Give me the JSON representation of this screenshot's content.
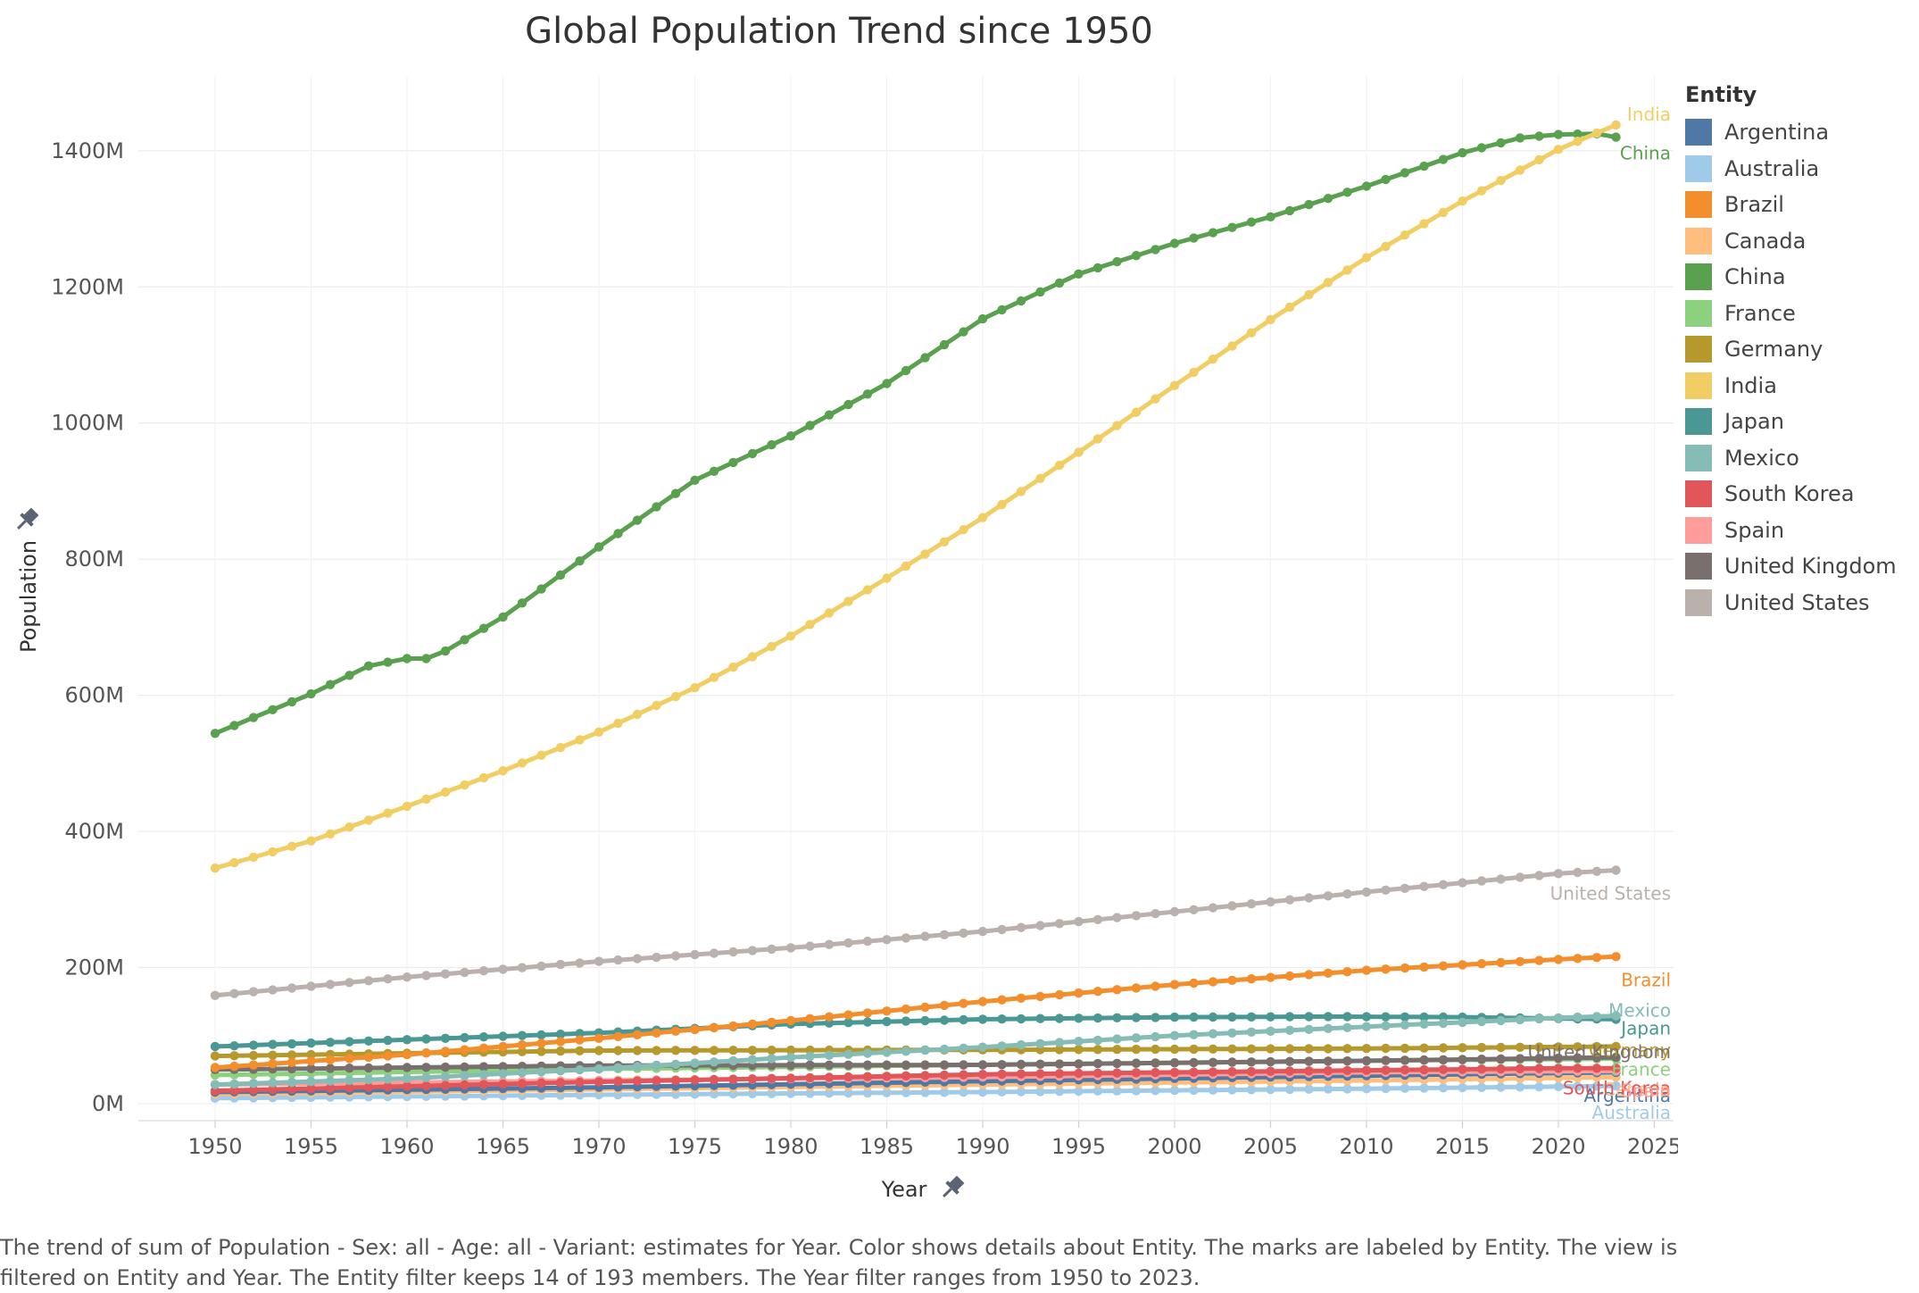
{
  "page_title": "Global Population Trend since 1950",
  "legend_title": "Entity",
  "caption": [
    "The trend of sum of Population - Sex: all - Age: all - Variant: estimates for Year.  Color shows details about Entity.  The marks are labeled by Entity. The view is",
    "filtered on Entity and Year. The Entity filter keeps 14 of 193 members. The Year filter ranges from 1950 to 2023."
  ],
  "chart_data": {
    "type": "line",
    "title": "Global Population Trend since 1950",
    "xlabel": "Year",
    "ylabel": "Population",
    "xlim": [
      1946,
      2026
    ],
    "ylim": [
      -25,
      1510
    ],
    "x_ticks": [
      1950,
      1955,
      1960,
      1965,
      1970,
      1975,
      1980,
      1985,
      1990,
      1995,
      2000,
      2005,
      2010,
      2015,
      2020,
      2025
    ],
    "y_ticks": [
      0,
      200,
      400,
      600,
      800,
      1000,
      1200,
      1400
    ],
    "y_tick_labels": [
      "0M",
      "200M",
      "400M",
      "600M",
      "800M",
      "1000M",
      "1200M",
      "1400M"
    ],
    "units": "millions",
    "legend": "right",
    "grid": true,
    "series": [
      {
        "name": "Argentina",
        "color": "#4e79a7",
        "knots": [
          [
            1950,
            17
          ],
          [
            1970,
            24
          ],
          [
            1990,
            33
          ],
          [
            2010,
            41
          ],
          [
            2023,
            46
          ]
        ]
      },
      {
        "name": "Australia",
        "color": "#a0cbe8",
        "knots": [
          [
            1950,
            8
          ],
          [
            1970,
            13
          ],
          [
            1990,
            17
          ],
          [
            2010,
            22
          ],
          [
            2023,
            26
          ]
        ]
      },
      {
        "name": "Brazil",
        "color": "#f28e2b",
        "knots": [
          [
            1950,
            53
          ],
          [
            1960,
            72
          ],
          [
            1970,
            96
          ],
          [
            1980,
            122
          ],
          [
            1990,
            150
          ],
          [
            2000,
            175
          ],
          [
            2010,
            196
          ],
          [
            2020,
            212
          ],
          [
            2023,
            216
          ]
        ]
      },
      {
        "name": "Canada",
        "color": "#ffbe7d",
        "knots": [
          [
            1950,
            14
          ],
          [
            1970,
            21
          ],
          [
            1990,
            28
          ],
          [
            2010,
            34
          ],
          [
            2023,
            39
          ]
        ]
      },
      {
        "name": "China",
        "color": "#59a14f",
        "knots": [
          [
            1950,
            544
          ],
          [
            1955,
            602
          ],
          [
            1958,
            643
          ],
          [
            1960,
            654
          ],
          [
            1961,
            654
          ],
          [
            1962,
            665
          ],
          [
            1965,
            715
          ],
          [
            1970,
            818
          ],
          [
            1975,
            916
          ],
          [
            1980,
            981
          ],
          [
            1985,
            1058
          ],
          [
            1990,
            1153
          ],
          [
            1995,
            1219
          ],
          [
            2000,
            1264
          ],
          [
            2005,
            1303
          ],
          [
            2010,
            1348
          ],
          [
            2015,
            1397
          ],
          [
            2018,
            1419
          ],
          [
            2020,
            1424
          ],
          [
            2022,
            1425
          ],
          [
            2023,
            1420
          ]
        ]
      },
      {
        "name": "France",
        "color": "#8cd17d",
        "knots": [
          [
            1950,
            42
          ],
          [
            1970,
            51
          ],
          [
            1990,
            57
          ],
          [
            2010,
            63
          ],
          [
            2023,
            66
          ]
        ]
      },
      {
        "name": "Germany",
        "color": "#b6992d",
        "knots": [
          [
            1950,
            70
          ],
          [
            1970,
            78
          ],
          [
            1990,
            79
          ],
          [
            2010,
            81
          ],
          [
            2023,
            84
          ]
        ]
      },
      {
        "name": "India",
        "color": "#f1ce63",
        "knots": [
          [
            1950,
            346
          ],
          [
            1955,
            386
          ],
          [
            1960,
            437
          ],
          [
            1965,
            489
          ],
          [
            1970,
            546
          ],
          [
            1975,
            611
          ],
          [
            1980,
            687
          ],
          [
            1985,
            772
          ],
          [
            1990,
            861
          ],
          [
            1995,
            957
          ],
          [
            2000,
            1055
          ],
          [
            2005,
            1152
          ],
          [
            2010,
            1243
          ],
          [
            2015,
            1326
          ],
          [
            2020,
            1402
          ],
          [
            2023,
            1438
          ]
        ]
      },
      {
        "name": "Japan",
        "color": "#499894",
        "knots": [
          [
            1950,
            84
          ],
          [
            1960,
            94
          ],
          [
            1970,
            104
          ],
          [
            1980,
            117
          ],
          [
            1990,
            124
          ],
          [
            2000,
            127
          ],
          [
            2008,
            128
          ],
          [
            2015,
            127
          ],
          [
            2023,
            124
          ]
        ]
      },
      {
        "name": "Mexico",
        "color": "#86bcb6",
        "knots": [
          [
            1950,
            28
          ],
          [
            1960,
            37
          ],
          [
            1970,
            51
          ],
          [
            1980,
            68
          ],
          [
            1990,
            83
          ],
          [
            2000,
            100
          ],
          [
            2010,
            113
          ],
          [
            2020,
            126
          ],
          [
            2023,
            129
          ]
        ]
      },
      {
        "name": "South Korea",
        "color": "#e15759",
        "knots": [
          [
            1950,
            19
          ],
          [
            1970,
            32
          ],
          [
            1990,
            43
          ],
          [
            2010,
            49
          ],
          [
            2020,
            52
          ],
          [
            2023,
            52
          ]
        ]
      },
      {
        "name": "Spain",
        "color": "#ff9d9a",
        "knots": [
          [
            1950,
            28
          ],
          [
            1970,
            34
          ],
          [
            1990,
            39
          ],
          [
            2010,
            46
          ],
          [
            2023,
            48
          ]
        ]
      },
      {
        "name": "United Kingdom",
        "color": "#79706e",
        "knots": [
          [
            1950,
            50
          ],
          [
            1970,
            56
          ],
          [
            1990,
            57
          ],
          [
            2010,
            63
          ],
          [
            2023,
            68
          ]
        ]
      },
      {
        "name": "United States",
        "color": "#bab0ac",
        "knots": [
          [
            1950,
            159
          ],
          [
            1960,
            186
          ],
          [
            1970,
            209
          ],
          [
            1980,
            229
          ],
          [
            1990,
            253
          ],
          [
            2000,
            282
          ],
          [
            2010,
            311
          ],
          [
            2020,
            338
          ],
          [
            2023,
            343
          ]
        ]
      }
    ]
  }
}
